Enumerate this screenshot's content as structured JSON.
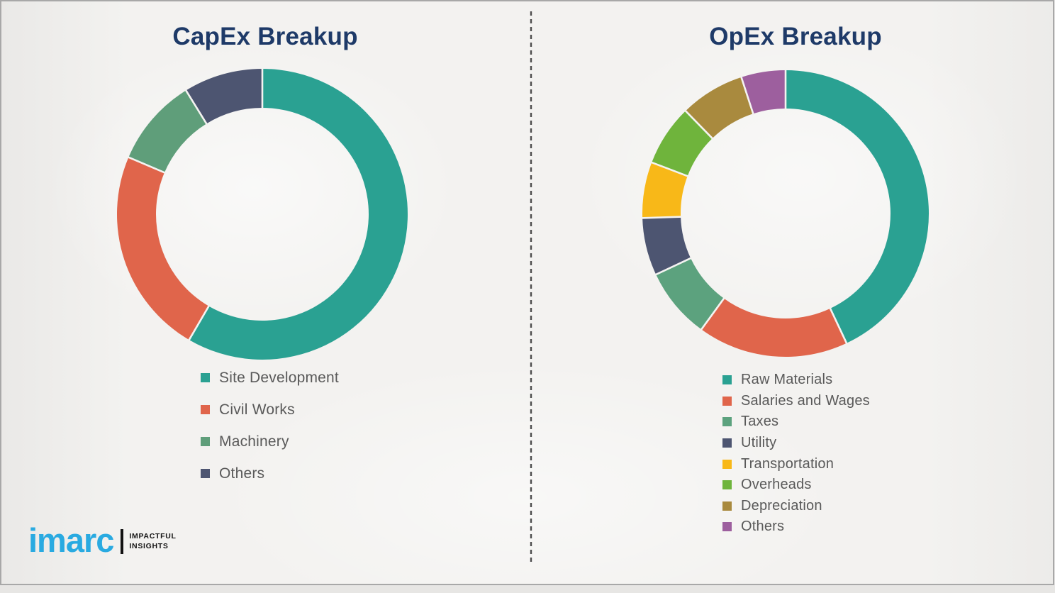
{
  "chart_data": [
    {
      "type": "pie",
      "subtype": "donut",
      "title": "CapEx Breakup",
      "categories": [
        "Site Development",
        "Civil Works",
        "Machinery",
        "Others"
      ],
      "values": [
        58.4,
        23.0,
        9.8,
        8.8
      ],
      "colors": [
        "#2aa192",
        "#e0654b",
        "#5f9e7a",
        "#4d5571"
      ],
      "start_angle_deg": 0,
      "direction": "clockwise",
      "legend_position": "below-left",
      "data_labels": "none"
    },
    {
      "type": "pie",
      "subtype": "donut",
      "title": "OpEx Breakup",
      "categories": [
        "Raw Materials",
        "Salaries and Wages",
        "Taxes",
        "Utility",
        "Transportation",
        "Overheads",
        "Depreciation",
        "Others"
      ],
      "values": [
        43.0,
        17.0,
        8.0,
        6.5,
        6.3,
        6.9,
        7.3,
        5.0
      ],
      "colors": [
        "#2aa192",
        "#e0654b",
        "#5ca27e",
        "#4d5571",
        "#f8b818",
        "#6fb43c",
        "#a98a3e",
        "#9d5f9e"
      ],
      "start_angle_deg": 0,
      "direction": "clockwise",
      "legend_position": "below-left",
      "data_labels": "none"
    }
  ],
  "logo": {
    "brand": "imarc",
    "brand_color": "#29aae1",
    "tagline_line1": "IMPACTFUL",
    "tagline_line2": "INSIGHTS"
  },
  "style": {
    "background": "#f3f2f0",
    "title_color": "#1e3a68",
    "legend_text_color": "#595959",
    "divider_color": "#4d4d4d",
    "frame_border_color": "#a8a8a8",
    "segment_gap_color": "#f4f3f1"
  }
}
